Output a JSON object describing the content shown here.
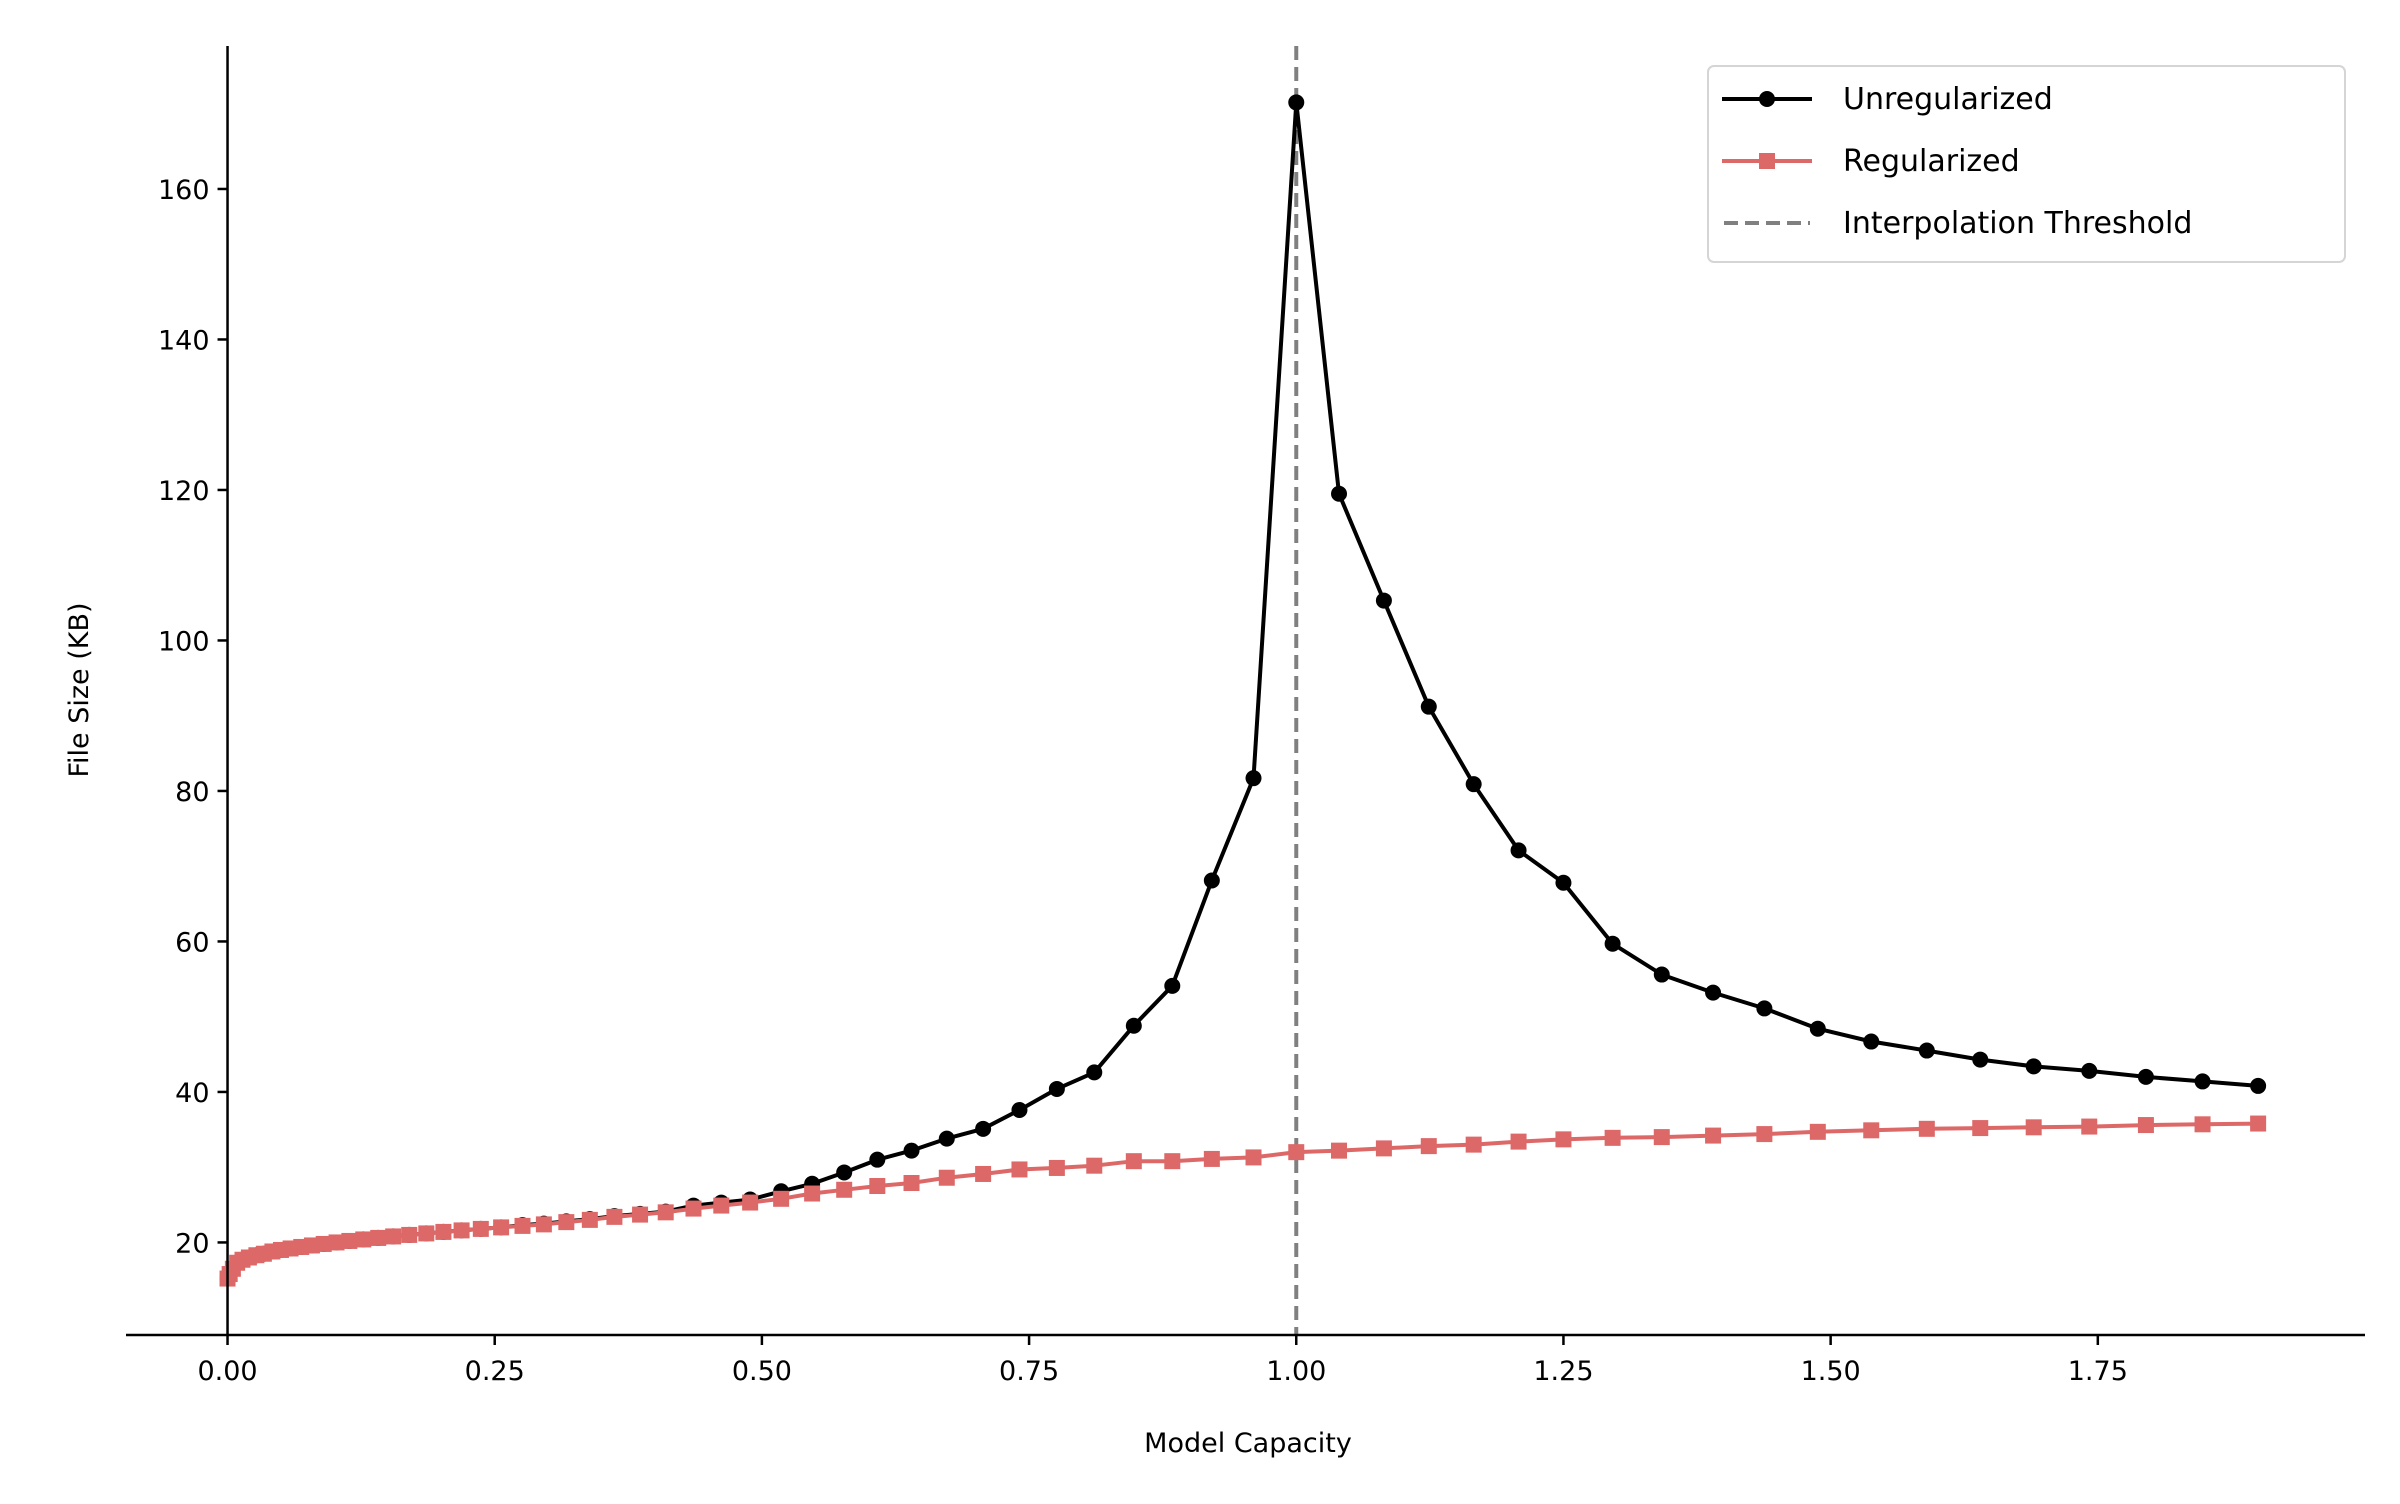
{
  "chart_data": {
    "type": "line",
    "title": "",
    "xlabel": "Model Capacity",
    "ylabel": "File Size (KB)",
    "xlim": [
      -0.095,
      2.0
    ],
    "ylim": [
      7.7,
      179
    ],
    "xticks": [
      "0.00",
      "0.25",
      "0.50",
      "0.75",
      "1.00",
      "1.25",
      "1.50",
      "1.75"
    ],
    "yticks": [
      "20",
      "40",
      "60",
      "80",
      "100",
      "120",
      "140",
      "160"
    ],
    "grid": false,
    "legend_position": "top-right",
    "threshold": {
      "name": "Interpolation Threshold",
      "x": 1.0,
      "color": "#808080"
    },
    "x": [
      0.0,
      0.002,
      0.005,
      0.009,
      0.014,
      0.02,
      0.027,
      0.034,
      0.042,
      0.05,
      0.059,
      0.069,
      0.079,
      0.09,
      0.102,
      0.114,
      0.127,
      0.141,
      0.155,
      0.17,
      0.186,
      0.202,
      0.219,
      0.237,
      0.256,
      0.276,
      0.296,
      0.317,
      0.339,
      0.362,
      0.386,
      0.41,
      0.436,
      0.462,
      0.489,
      0.518,
      0.547,
      0.577,
      0.608,
      0.64,
      0.673,
      0.707,
      0.741,
      0.776,
      0.811,
      0.848,
      0.884,
      0.921,
      0.96,
      1.0,
      1.04,
      1.082,
      1.124,
      1.166,
      1.208,
      1.25,
      1.296,
      1.342,
      1.39,
      1.438,
      1.488,
      1.538,
      1.59,
      1.64,
      1.69,
      1.742,
      1.795,
      1.848,
      1.9
    ],
    "series": [
      {
        "name": "Unregularized",
        "color": "#000000",
        "marker": "circle",
        "values": [
          15.2,
          15.8,
          16.5,
          17.3,
          17.7,
          18.0,
          18.3,
          18.5,
          18.8,
          19.0,
          19.2,
          19.4,
          19.6,
          19.8,
          20.0,
          20.2,
          20.4,
          20.6,
          20.8,
          21.0,
          21.2,
          21.4,
          21.6,
          21.8,
          22.0,
          22.3,
          22.5,
          22.8,
          23.1,
          23.5,
          23.8,
          24.1,
          24.9,
          25.3,
          25.7,
          26.8,
          27.8,
          29.3,
          31.0,
          32.2,
          33.8,
          35.1,
          37.6,
          40.4,
          42.6,
          48.8,
          54.1,
          68.1,
          81.7,
          171.5,
          119.5,
          105.3,
          91.2,
          80.9,
          72.1,
          67.8,
          59.7,
          55.6,
          53.2,
          51.1,
          48.4,
          46.7,
          45.5,
          44.3,
          43.4,
          42.8,
          42.0,
          41.4,
          40.8
        ]
      },
      {
        "name": "Regularized",
        "color": "#dd6868",
        "marker": "square",
        "values": [
          15.2,
          15.8,
          16.5,
          17.3,
          17.7,
          18.0,
          18.3,
          18.5,
          18.8,
          19.0,
          19.2,
          19.4,
          19.6,
          19.8,
          20.0,
          20.2,
          20.4,
          20.6,
          20.8,
          21.0,
          21.2,
          21.4,
          21.6,
          21.8,
          22.0,
          22.2,
          22.4,
          22.7,
          23.0,
          23.4,
          23.7,
          24.0,
          24.5,
          24.9,
          25.3,
          25.8,
          26.5,
          27.0,
          27.5,
          27.9,
          28.6,
          29.1,
          29.7,
          29.9,
          30.2,
          30.8,
          30.8,
          31.1,
          31.3,
          32.0,
          32.2,
          32.5,
          32.8,
          33.0,
          33.4,
          33.7,
          33.9,
          34.0,
          34.2,
          34.4,
          34.7,
          34.9,
          35.1,
          35.2,
          35.3,
          35.4,
          35.6,
          35.7,
          35.8
        ]
      }
    ]
  }
}
